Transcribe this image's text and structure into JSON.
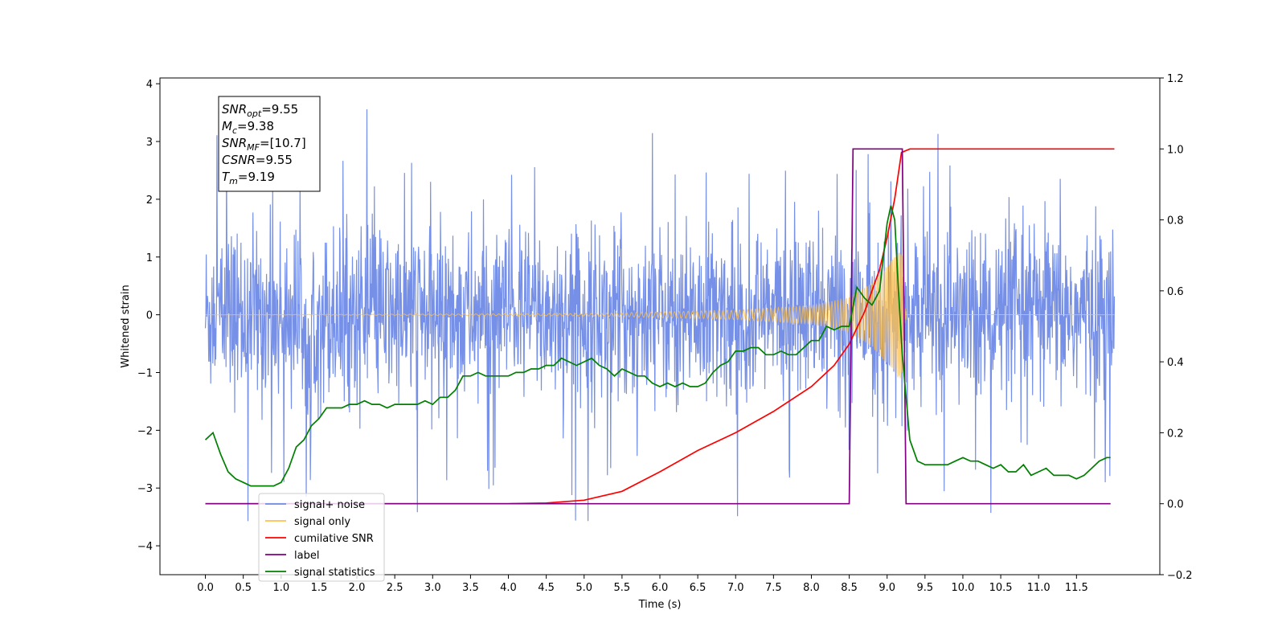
{
  "chart_data": {
    "type": "line",
    "title": "",
    "xlabel": "Time (s)",
    "ylabel": "Whitened strain",
    "xlim": [
      -0.6,
      12.6
    ],
    "ylim": [
      -4.5,
      4.1
    ],
    "y2lim": [
      -0.2,
      1.2
    ],
    "x_ticks": [
      0.0,
      0.5,
      1.0,
      1.5,
      2.0,
      2.5,
      3.0,
      3.5,
      4.0,
      4.5,
      5.0,
      5.5,
      6.0,
      6.5,
      7.0,
      7.5,
      8.0,
      8.5,
      9.0,
      9.5,
      10.0,
      10.5,
      11.0,
      11.5
    ],
    "x_tick_labels": [
      "0.0",
      "0.5",
      "1.0",
      "1.5",
      "2.0",
      "2.5",
      "3.0",
      "3.5",
      "4.0",
      "4.5",
      "5.0",
      "5.5",
      "6.0",
      "6.5",
      "7.0",
      "7.5",
      "8.0",
      "8.5",
      "9.0",
      "9.5",
      "10.0",
      "10.5",
      "11.0",
      "11.5"
    ],
    "y_ticks": [
      -4,
      -3,
      -2,
      -1,
      0,
      1,
      2,
      3,
      4
    ],
    "y_tick_labels": [
      "−4",
      "−3",
      "−2",
      "−1",
      "0",
      "1",
      "2",
      "3",
      "4"
    ],
    "y2_ticks": [
      -0.2,
      0.0,
      0.2,
      0.4,
      0.6,
      0.8,
      1.0,
      1.2
    ],
    "y2_tick_labels": [
      "−0.2",
      "0.0",
      "0.2",
      "0.4",
      "0.6",
      "0.8",
      "1.0",
      "1.2"
    ],
    "grid": false,
    "legend_position": "lower-left",
    "legend": [
      {
        "label": "signal+ noise",
        "color": "#6f8ae6"
      },
      {
        "label": "signal only",
        "color": "#ffc04d"
      },
      {
        "label": "cumilative SNR",
        "color": "#ff0000"
      },
      {
        "label": "label",
        "color": "#800080"
      },
      {
        "label": "signal statistics",
        "color": "#008000"
      }
    ],
    "annotation": [
      {
        "base": "SNR",
        "sub": "opt",
        "value": "=9.55"
      },
      {
        "base": "M",
        "sub": "c",
        "value": "=9.38"
      },
      {
        "base": "SNR",
        "sub": "MF",
        "value": "=[10.7]"
      },
      {
        "base": "CSNR",
        "sub": "",
        "value": "=9.55"
      },
      {
        "base": "T",
        "sub": "m",
        "value": "=9.19"
      }
    ],
    "series": [
      {
        "name": "signal+ noise",
        "axis": "left",
        "color": "#6f8ae6",
        "style": "noise",
        "x_range": [
          0.0,
          12.0
        ],
        "amplitude_sd": 0.75,
        "peak": 3.7,
        "trough": -3.7
      },
      {
        "name": "signal only",
        "axis": "left",
        "color": "#ffc04d",
        "style": "chirp",
        "x_range": [
          0.0,
          9.2
        ],
        "amplitude_points": [
          [
            0.0,
            0.0
          ],
          [
            5.0,
            0.02
          ],
          [
            7.0,
            0.08
          ],
          [
            8.0,
            0.16
          ],
          [
            8.5,
            0.3
          ],
          [
            8.8,
            0.55
          ],
          [
            9.0,
            0.85
          ],
          [
            9.1,
            1.0
          ],
          [
            9.15,
            1.1
          ],
          [
            9.2,
            1.1
          ]
        ],
        "ringdown_end": 9.25
      },
      {
        "name": "cumilative SNR",
        "axis": "right",
        "color": "#ff0000",
        "x": [
          0.0,
          4.0,
          4.5,
          5.0,
          5.5,
          6.0,
          6.5,
          7.0,
          7.5,
          8.0,
          8.3,
          8.5,
          8.7,
          8.9,
          9.0,
          9.1,
          9.19,
          9.3,
          10.0,
          11.0,
          12.0
        ],
        "y": [
          0.0,
          0.0,
          0.002,
          0.01,
          0.035,
          0.09,
          0.15,
          0.2,
          0.26,
          0.33,
          0.39,
          0.45,
          0.54,
          0.66,
          0.75,
          0.86,
          0.99,
          1.0,
          1.0,
          1.0,
          1.0
        ]
      },
      {
        "name": "label",
        "axis": "right",
        "color": "#800080",
        "x": [
          0.0,
          8.5,
          8.55,
          9.2,
          9.25,
          11.95
        ],
        "y": [
          0.0,
          0.0,
          1.0,
          1.0,
          0.0,
          0.0
        ]
      },
      {
        "name": "signal statistics",
        "axis": "right",
        "color": "#008000",
        "x": [
          0.0,
          0.1,
          0.2,
          0.3,
          0.4,
          0.5,
          0.6,
          0.7,
          0.8,
          0.9,
          1.0,
          1.1,
          1.2,
          1.3,
          1.4,
          1.5,
          1.6,
          1.7,
          1.8,
          1.9,
          2.0,
          2.1,
          2.2,
          2.3,
          2.4,
          2.5,
          2.6,
          2.7,
          2.8,
          2.9,
          3.0,
          3.1,
          3.2,
          3.3,
          3.4,
          3.5,
          3.6,
          3.7,
          3.8,
          3.9,
          4.0,
          4.1,
          4.2,
          4.3,
          4.4,
          4.5,
          4.6,
          4.7,
          4.8,
          4.9,
          5.0,
          5.1,
          5.2,
          5.3,
          5.4,
          5.5,
          5.6,
          5.7,
          5.8,
          5.9,
          6.0,
          6.1,
          6.2,
          6.3,
          6.4,
          6.5,
          6.6,
          6.7,
          6.8,
          6.9,
          7.0,
          7.1,
          7.2,
          7.3,
          7.4,
          7.5,
          7.6,
          7.7,
          7.8,
          7.9,
          8.0,
          8.1,
          8.2,
          8.3,
          8.4,
          8.5,
          8.6,
          8.7,
          8.8,
          8.9,
          9.0,
          9.05,
          9.1,
          9.15,
          9.2,
          9.25,
          9.3,
          9.4,
          9.5,
          9.6,
          9.7,
          9.8,
          9.9,
          10.0,
          10.1,
          10.2,
          10.3,
          10.4,
          10.5,
          10.6,
          10.7,
          10.8,
          10.9,
          11.0,
          11.1,
          11.2,
          11.3,
          11.4,
          11.5,
          11.6,
          11.7,
          11.8,
          11.9,
          11.95
        ],
        "y": [
          0.18,
          0.2,
          0.14,
          0.09,
          0.07,
          0.06,
          0.05,
          0.05,
          0.05,
          0.05,
          0.06,
          0.1,
          0.16,
          0.18,
          0.22,
          0.24,
          0.27,
          0.27,
          0.27,
          0.28,
          0.28,
          0.29,
          0.28,
          0.28,
          0.27,
          0.28,
          0.28,
          0.28,
          0.28,
          0.29,
          0.28,
          0.3,
          0.3,
          0.32,
          0.36,
          0.36,
          0.37,
          0.36,
          0.36,
          0.36,
          0.36,
          0.37,
          0.37,
          0.38,
          0.38,
          0.39,
          0.39,
          0.41,
          0.4,
          0.39,
          0.4,
          0.41,
          0.39,
          0.38,
          0.36,
          0.38,
          0.37,
          0.36,
          0.36,
          0.34,
          0.33,
          0.34,
          0.33,
          0.34,
          0.33,
          0.33,
          0.34,
          0.37,
          0.39,
          0.4,
          0.43,
          0.43,
          0.44,
          0.44,
          0.42,
          0.42,
          0.43,
          0.42,
          0.42,
          0.44,
          0.46,
          0.46,
          0.5,
          0.49,
          0.5,
          0.5,
          0.61,
          0.58,
          0.56,
          0.6,
          0.79,
          0.84,
          0.8,
          0.6,
          0.42,
          0.3,
          0.18,
          0.12,
          0.11,
          0.11,
          0.11,
          0.11,
          0.12,
          0.13,
          0.12,
          0.12,
          0.11,
          0.1,
          0.11,
          0.09,
          0.09,
          0.11,
          0.08,
          0.09,
          0.1,
          0.08,
          0.08,
          0.08,
          0.07,
          0.08,
          0.1,
          0.12,
          0.13,
          0.13
        ]
      }
    ]
  }
}
